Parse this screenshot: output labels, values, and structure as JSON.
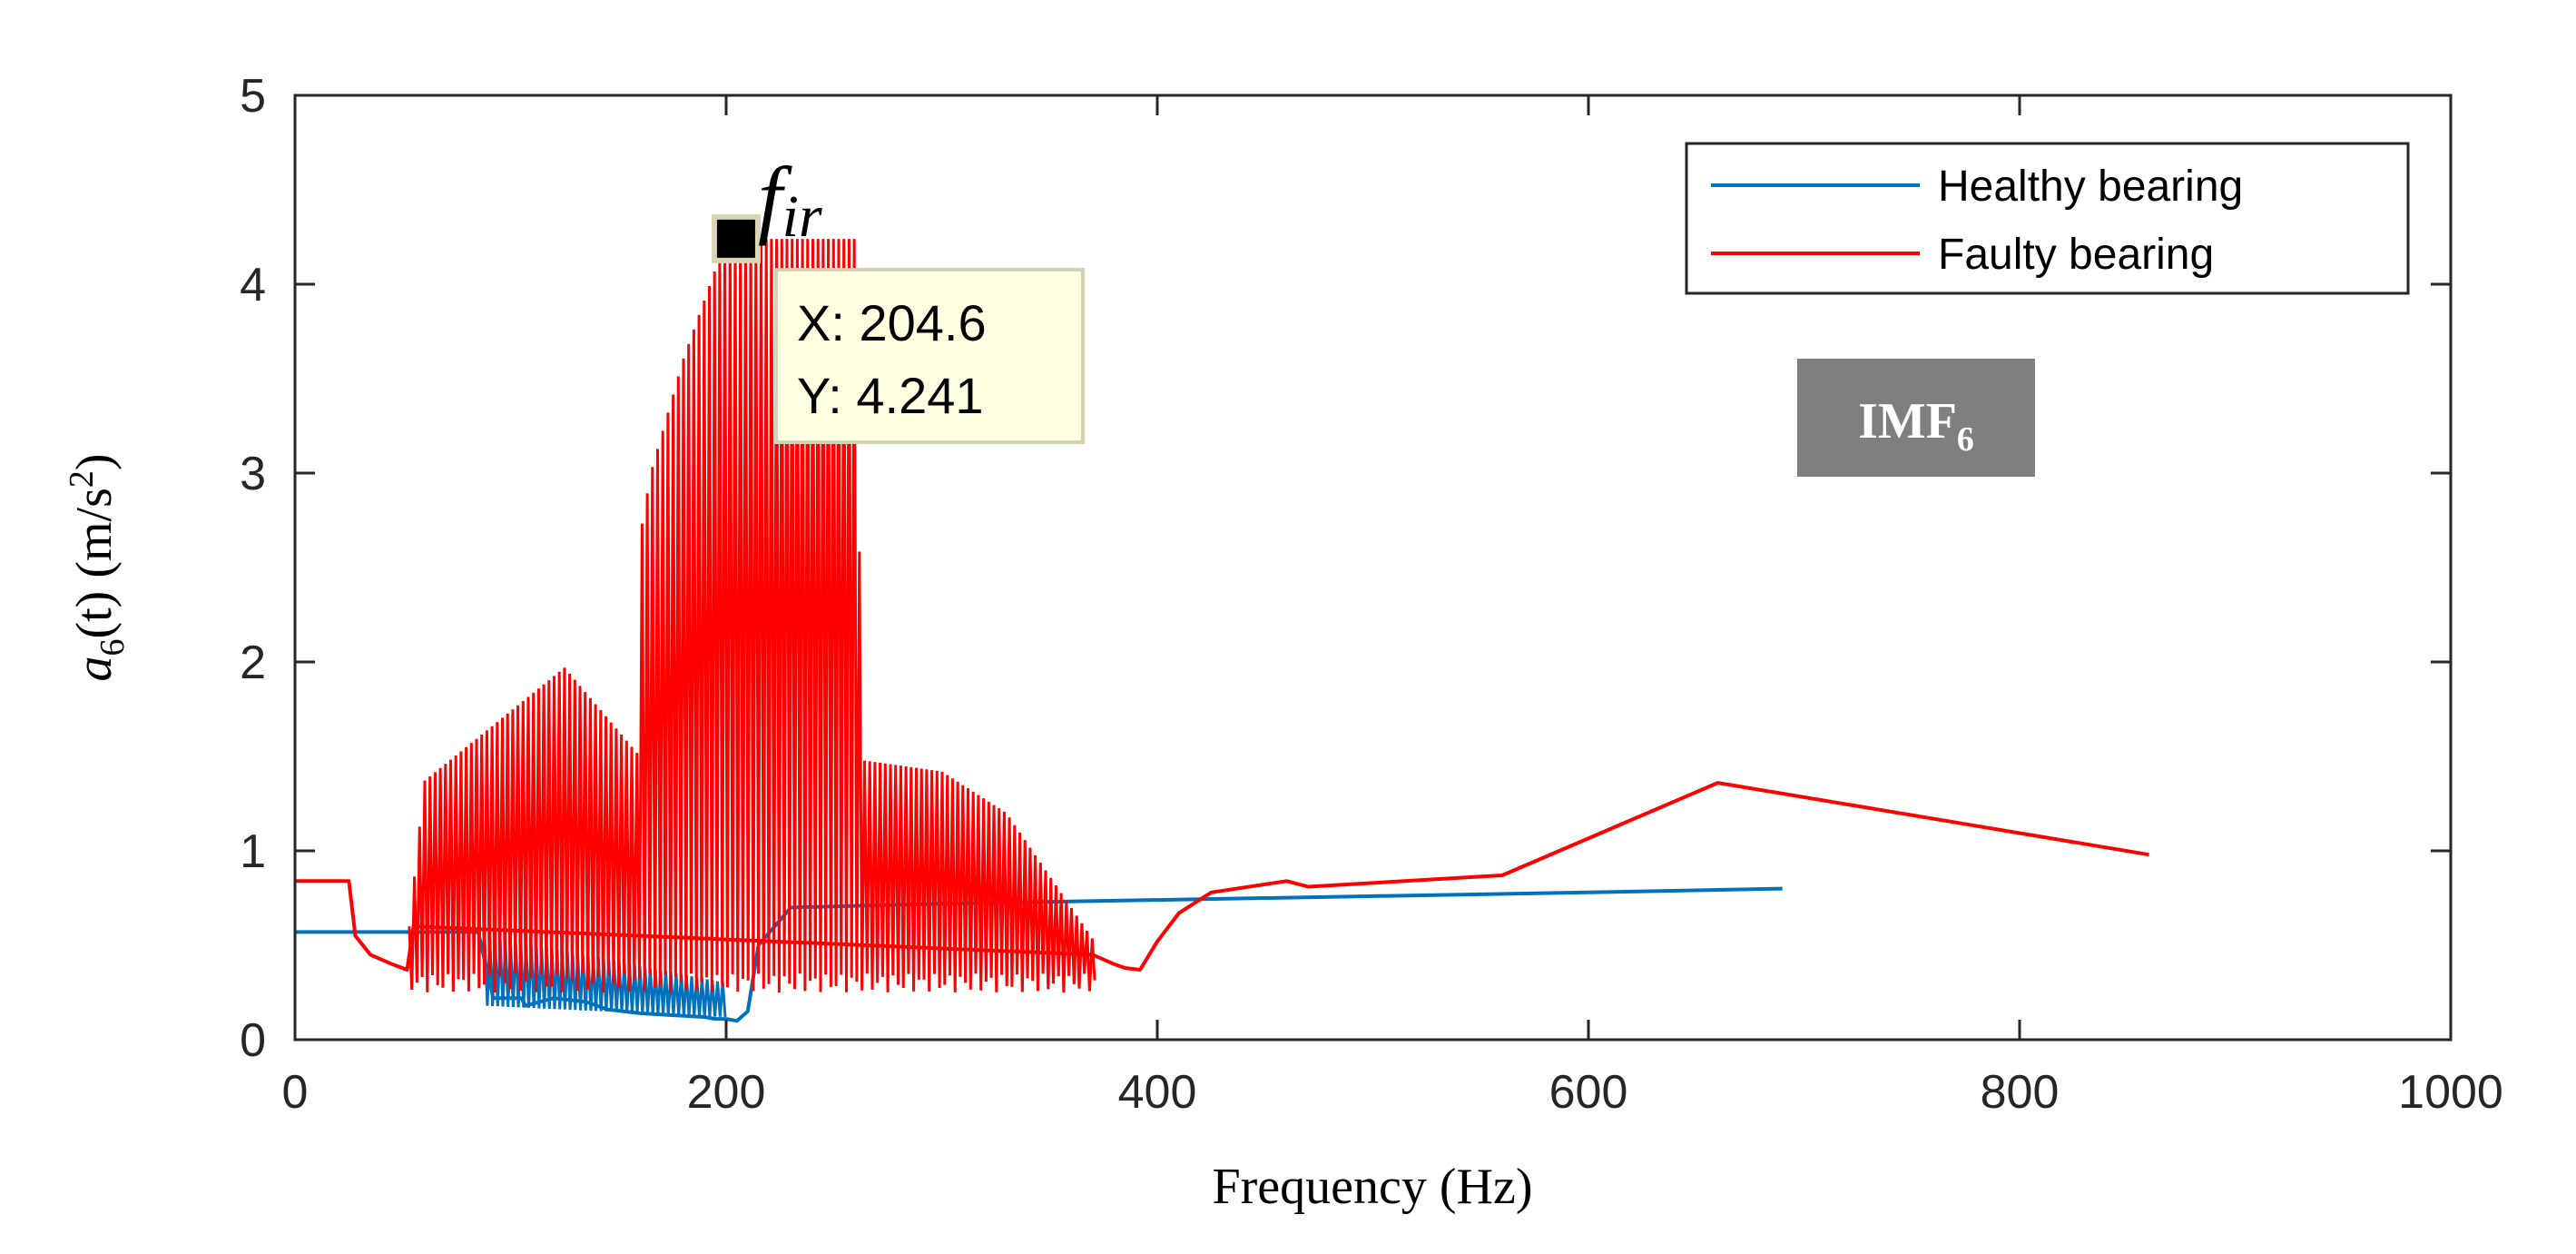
{
  "chart_data": {
    "type": "line",
    "xlabel": "Frequency (Hz)",
    "ylabel": {
      "base": "a",
      "sub": "6",
      "rest": "(t) (m/s",
      "sup": "2",
      "close": ")"
    },
    "xlim": [
      0,
      1000
    ],
    "ylim": [
      0,
      5
    ],
    "xticks": [
      "0",
      "200",
      "400",
      "600",
      "800",
      "1000"
    ],
    "yticks": [
      "0",
      "1",
      "2",
      "3",
      "4",
      "5"
    ],
    "grid": false,
    "legend": {
      "position": "top-right",
      "entries": [
        "Healthy bearing",
        "Faulty bearing"
      ]
    },
    "series": [
      {
        "name": "Healthy bearing",
        "color": "#0072bd",
        "x": [
          0,
          85,
          92,
          105,
          107,
          120,
          135,
          145,
          160,
          175,
          190,
          195,
          200,
          205,
          210,
          215,
          230,
          300,
          400,
          500,
          600,
          690
        ],
        "y": [
          0.57,
          0.57,
          0.22,
          0.22,
          0.18,
          0.22,
          0.2,
          0.16,
          0.14,
          0.13,
          0.12,
          0.11,
          0.11,
          0.1,
          0.15,
          0.5,
          0.7,
          0.72,
          0.74,
          0.76,
          0.78,
          0.8
        ],
        "dense_band": {
          "x_start": 88,
          "x_end": 200,
          "y_low": [
            0.18,
            0.12
          ],
          "y_high": [
            0.55,
            0.3
          ]
        }
      },
      {
        "name": "Faulty bearing",
        "color": "#ff0000",
        "x": [
          0,
          25,
          28,
          35,
          45,
          52,
          55,
          370,
          380,
          385,
          392,
          400,
          410,
          425,
          460,
          470,
          560,
          660,
          860
        ],
        "y": [
          0.84,
          0.84,
          0.55,
          0.45,
          0.4,
          0.37,
          0.6,
          0.45,
          0.4,
          0.38,
          0.37,
          0.52,
          0.67,
          0.78,
          0.84,
          0.81,
          0.87,
          1.36,
          0.98
        ],
        "dense_band": {
          "x_start": 53,
          "x_end": 372,
          "upper_x": [
            53,
            60,
            125,
            160,
            160.5,
            165,
            180,
            200,
            260,
            263,
            300,
            330,
            345,
            360,
            372
          ],
          "upper_y": [
            0.6,
            1.37,
            1.97,
            1.5,
            2.7,
            3.0,
            3.6,
            4.24,
            4.24,
            1.48,
            1.42,
            1.2,
            0.95,
            0.7,
            0.5
          ],
          "lower_y": 0.3
        }
      }
    ],
    "annotation": {
      "label": "f",
      "sub": "ir",
      "x": 204.6,
      "y": 4.241,
      "text_x": "X: 204.6",
      "text_y": "Y: 4.241"
    },
    "tag": {
      "label": "IMF",
      "sub": "6"
    }
  }
}
